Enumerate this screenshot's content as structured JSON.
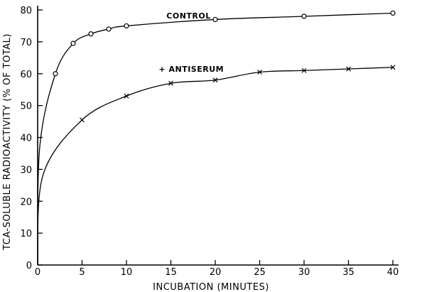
{
  "chart_data": {
    "type": "line",
    "title": "",
    "xlabel": "INCUBATION (MINUTES)",
    "ylabel": "TCA-SOLUBLE RADIOACTIVITY (% OF TOTAL)",
    "xlim": [
      0,
      40
    ],
    "ylim": [
      0,
      80
    ],
    "xticks": [
      0,
      5,
      10,
      15,
      20,
      25,
      30,
      35,
      40
    ],
    "yticks": [
      0,
      10,
      20,
      30,
      40,
      50,
      60,
      70,
      80
    ],
    "grid": false,
    "legend": "none",
    "series": [
      {
        "name": "CONTROL",
        "marker": "circle",
        "x": [
          2,
          4,
          6,
          8,
          10,
          20,
          30,
          40
        ],
        "y": [
          60,
          69.5,
          72.5,
          74,
          75,
          77,
          78,
          79
        ]
      },
      {
        "name": "+ ANTISERUM",
        "marker": "x",
        "x": [
          5,
          10,
          15,
          20,
          25,
          30,
          35,
          40
        ],
        "y": [
          45.5,
          53,
          57,
          58,
          60.5,
          61,
          61.5,
          62
        ]
      }
    ]
  }
}
